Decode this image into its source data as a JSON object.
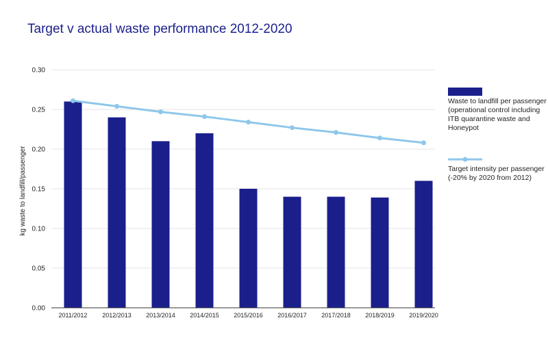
{
  "chart_data": {
    "type": "bar",
    "title": "Target v actual waste performance 2012-2020",
    "xlabel": "",
    "ylabel": "kg waste to landfill/passenger",
    "ylim": [
      0,
      0.3
    ],
    "yticks": [
      "0.30",
      "0.25",
      "0.20",
      "0.15",
      "0.10",
      "0.05",
      "0.00"
    ],
    "grid": true,
    "legend_position": "right",
    "categories": [
      "2011/2012",
      "2012/2013",
      "2013/2014",
      "2014/2015",
      "2015/2016",
      "2016/2017",
      "2017/2018",
      "2018/2019",
      "2019/2020"
    ],
    "series": [
      {
        "name": "Waste to landfill per passenger (operational control including ITB quarantine waste and Honeypot",
        "type": "bar",
        "color": "#1a1f8c",
        "values": [
          0.26,
          0.24,
          0.21,
          0.22,
          0.15,
          0.14,
          0.14,
          0.139,
          0.16
        ]
      },
      {
        "name": "Target intensity per passenger (-20% by 2020 from 2012)",
        "type": "line",
        "color": "#8ec7ea",
        "values": [
          0.261,
          0.254,
          0.247,
          0.241,
          0.234,
          0.227,
          0.221,
          0.214,
          0.208
        ]
      }
    ]
  }
}
